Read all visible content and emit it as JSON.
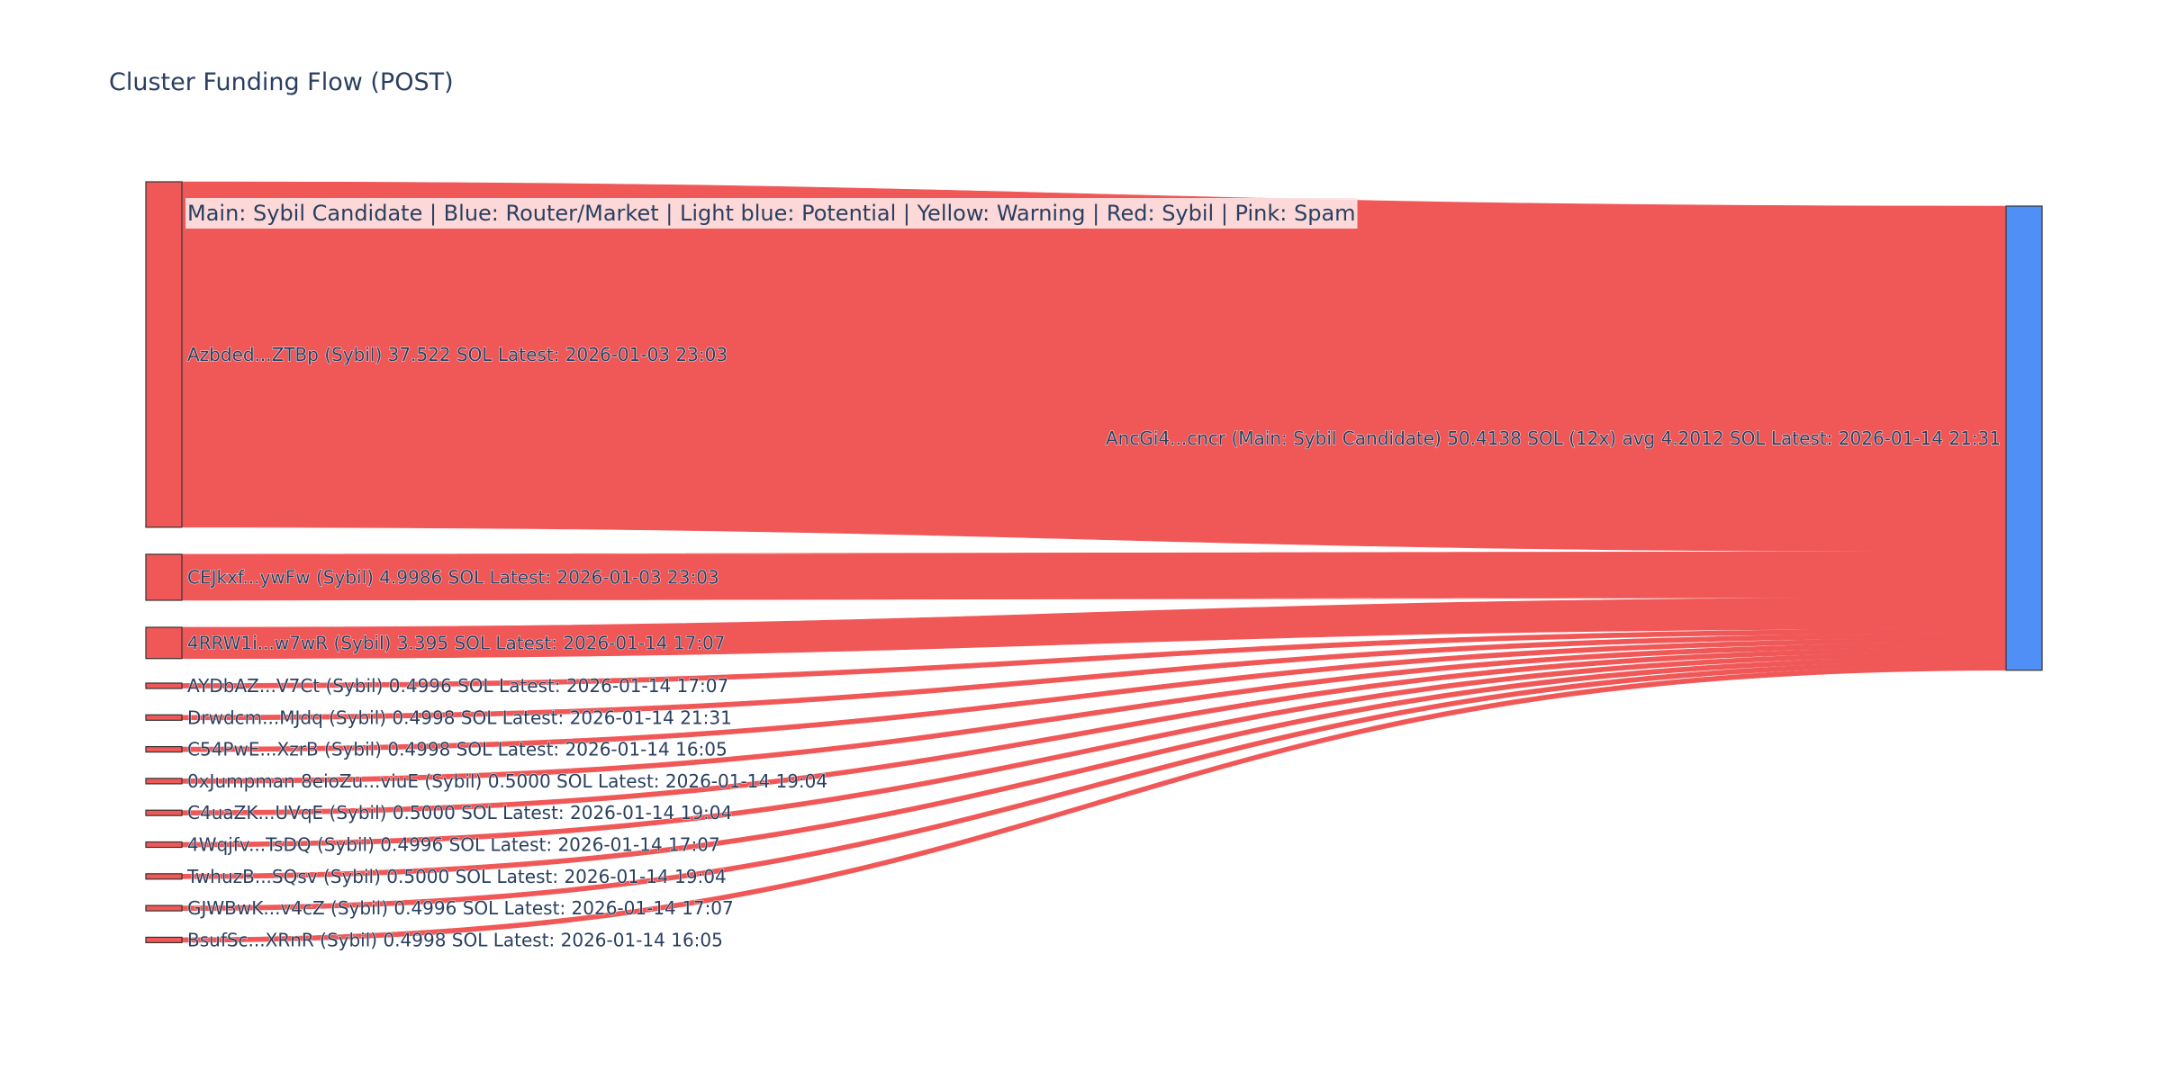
{
  "title": "Cluster Funding Flow (POST)",
  "legend": "Main: Sybil Candidate  |  Blue: Router/Market | Light blue: Potential | Yellow: Warning | Red: Sybil | Pink: Spam",
  "colors": {
    "sybil": "#f05858",
    "main": "#4f8ff6",
    "node_border": "#333333",
    "legend_bg": "#fde3e3",
    "title": "#2a3f5f"
  },
  "chart_data": {
    "type": "sankey",
    "target": {
      "label": "AncGi4...cncr (Main: Sybil Candidate) 50.4138 SOL (12x) avg 4.2012 SOL Latest: 2026-01-14 21:31",
      "value": 50.4138
    },
    "sources": [
      {
        "label": "Azbded...ZTBp (Sybil) 37.522 SOL Latest: 2026-01-03 23:03",
        "value": 37.522
      },
      {
        "label": "CEJkxf...ywFw (Sybil) 4.9986 SOL Latest: 2026-01-03 23:03",
        "value": 4.9986
      },
      {
        "label": "4RRW1i...w7wR (Sybil) 3.395 SOL Latest: 2026-01-14 17:07",
        "value": 3.395
      },
      {
        "label": "AYDbAZ...V7Ct (Sybil) 0.4996 SOL Latest: 2026-01-14 17:07",
        "value": 0.4996
      },
      {
        "label": "Drwdcm...MJdq (Sybil) 0.4998 SOL Latest: 2026-01-14 21:31",
        "value": 0.4998
      },
      {
        "label": "C54PwE...XzrB (Sybil) 0.4998 SOL Latest: 2026-01-14 16:05",
        "value": 0.4998
      },
      {
        "label": "0xJumpman 8eioZu...viuE (Sybil) 0.5000 SOL Latest: 2026-01-14 19:04",
        "value": 0.5
      },
      {
        "label": "C4uaZK...UVqE (Sybil) 0.5000 SOL Latest: 2026-01-14 19:04",
        "value": 0.5
      },
      {
        "label": "4Wqjfv...TsDQ (Sybil) 0.4996 SOL Latest: 2026-01-14 17:07",
        "value": 0.4996
      },
      {
        "label": "TwhuzB...SQsv (Sybil) 0.5000 SOL Latest: 2026-01-14 19:04",
        "value": 0.5
      },
      {
        "label": "GJWBwK...v4cZ (Sybil) 0.4996 SOL Latest: 2026-01-14 17:07",
        "value": 0.4996
      },
      {
        "label": "BsufSc...XRnR (Sybil) 0.4998 SOL Latest: 2026-01-14 16:05",
        "value": 0.4998
      }
    ]
  }
}
